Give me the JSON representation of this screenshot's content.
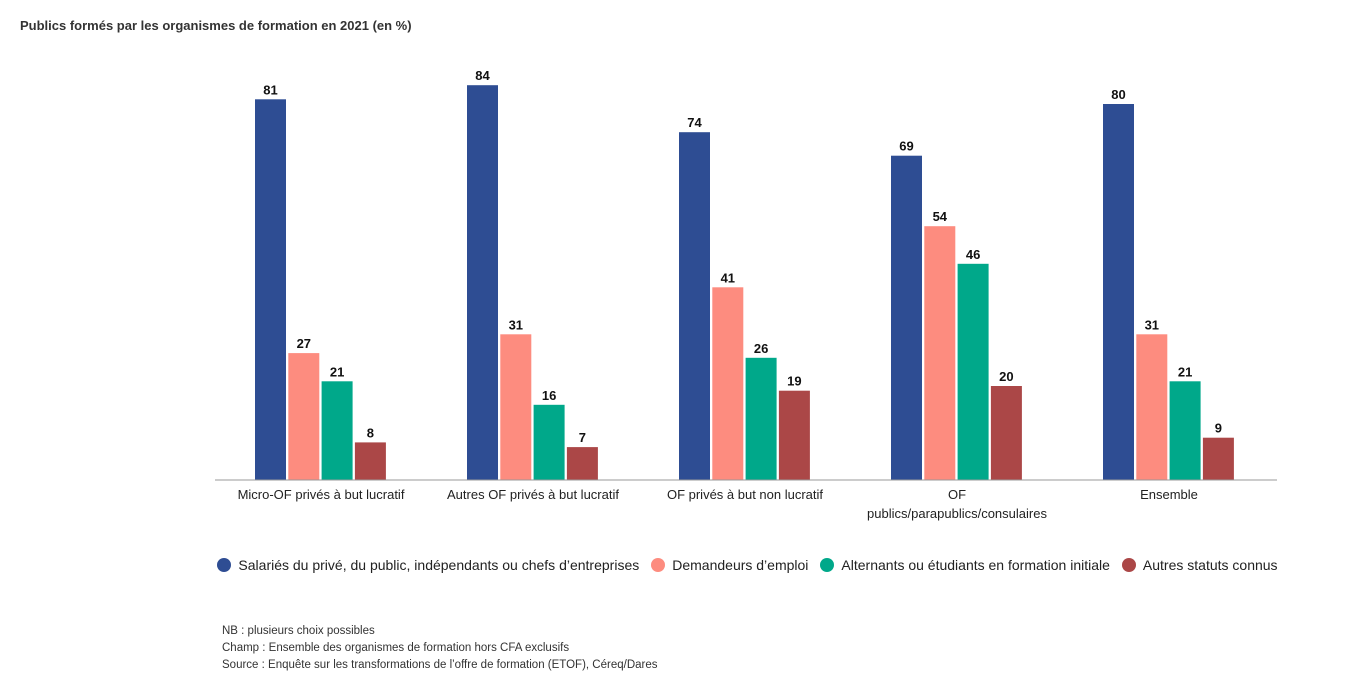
{
  "title": "Publics formés par les organismes de formation en 2021 (en %)",
  "chart_data": {
    "type": "bar",
    "title": "Publics formés par les organismes de formation en 2021 (en %)",
    "categories": [
      [
        "Micro-OF privés à but lucratif"
      ],
      [
        "Autres OF privés à but lucratif"
      ],
      [
        "OF privés à but non lucratif"
      ],
      [
        "OF",
        "publics/parapublics/consulaires"
      ],
      [
        "Ensemble"
      ]
    ],
    "series": [
      {
        "name": "Salariés du privé, du public, indépendants ou chefs d’entreprises",
        "color": "#2e4d93",
        "values": [
          81,
          84,
          74,
          69,
          80
        ]
      },
      {
        "name": "Demandeurs d’emploi",
        "color": "#fd8c7f",
        "values": [
          27,
          31,
          41,
          54,
          31
        ]
      },
      {
        "name": "Alternants ou étudiants en formation initiale",
        "color": "#00a88a",
        "values": [
          21,
          16,
          26,
          46,
          21
        ]
      },
      {
        "name": "Autres statuts connus",
        "color": "#ab4747",
        "values": [
          8,
          7,
          19,
          20,
          9
        ]
      }
    ],
    "ylim": [
      0,
      100
    ],
    "grid": false,
    "legend_position": "bottom"
  },
  "notes": [
    "NB : plusieurs choix possibles",
    "Champ : Ensemble des organismes de formation hors CFA exclusifs",
    "Source : Enquête sur les transformations de l’offre de formation (ETOF), Céreq/Dares"
  ]
}
